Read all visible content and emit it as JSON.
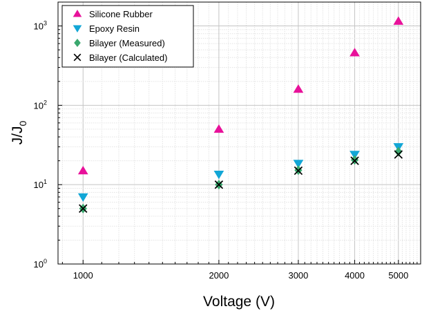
{
  "chart_data": {
    "type": "scatter",
    "xlabel": "Voltage (V)",
    "ylabel_base": "J/J",
    "ylabel_sub": "0",
    "x_scale": "log",
    "y_scale": "log",
    "xlim": [
      880,
      5600
    ],
    "ylim": [
      1,
      2000
    ],
    "x_ticks": [
      1000,
      2000,
      3000,
      4000,
      5000
    ],
    "x_tick_labels": [
      "1000",
      "2000",
      "3000",
      "4000",
      "5000"
    ],
    "y_ticks": [
      1,
      10,
      100,
      1000
    ],
    "y_tick_labels": [
      {
        "base": "10",
        "exp": "0"
      },
      {
        "base": "10",
        "exp": "1"
      },
      {
        "base": "10",
        "exp": "2"
      },
      {
        "base": "10",
        "exp": "3"
      }
    ],
    "grid": true,
    "legend_position": "top-left",
    "series": [
      {
        "name": "Silicone Rubber",
        "marker": "triangle-up",
        "color": "#e8119a",
        "x": [
          1000,
          2000,
          3000,
          4000,
          5000
        ],
        "y": [
          15,
          50,
          160,
          460,
          1150
        ]
      },
      {
        "name": "Epoxy Resin",
        "marker": "triangle-down",
        "color": "#12a6d6",
        "x": [
          1000,
          2000,
          3000,
          4000,
          5000
        ],
        "y": [
          7,
          13.5,
          18.5,
          24,
          30
        ]
      },
      {
        "name": "Bilayer (Measured)",
        "marker": "diamond",
        "color": "#3aa86e",
        "x": [
          1000,
          2000,
          3000,
          4000,
          5000
        ],
        "y": [
          5,
          10,
          15.2,
          20.5,
          26
        ]
      },
      {
        "name": "Bilayer (Calculated)",
        "marker": "x",
        "color": "#000000",
        "x": [
          1000,
          2000,
          3000,
          4000,
          5000
        ],
        "y": [
          5,
          10,
          15,
          20,
          24
        ]
      }
    ]
  }
}
